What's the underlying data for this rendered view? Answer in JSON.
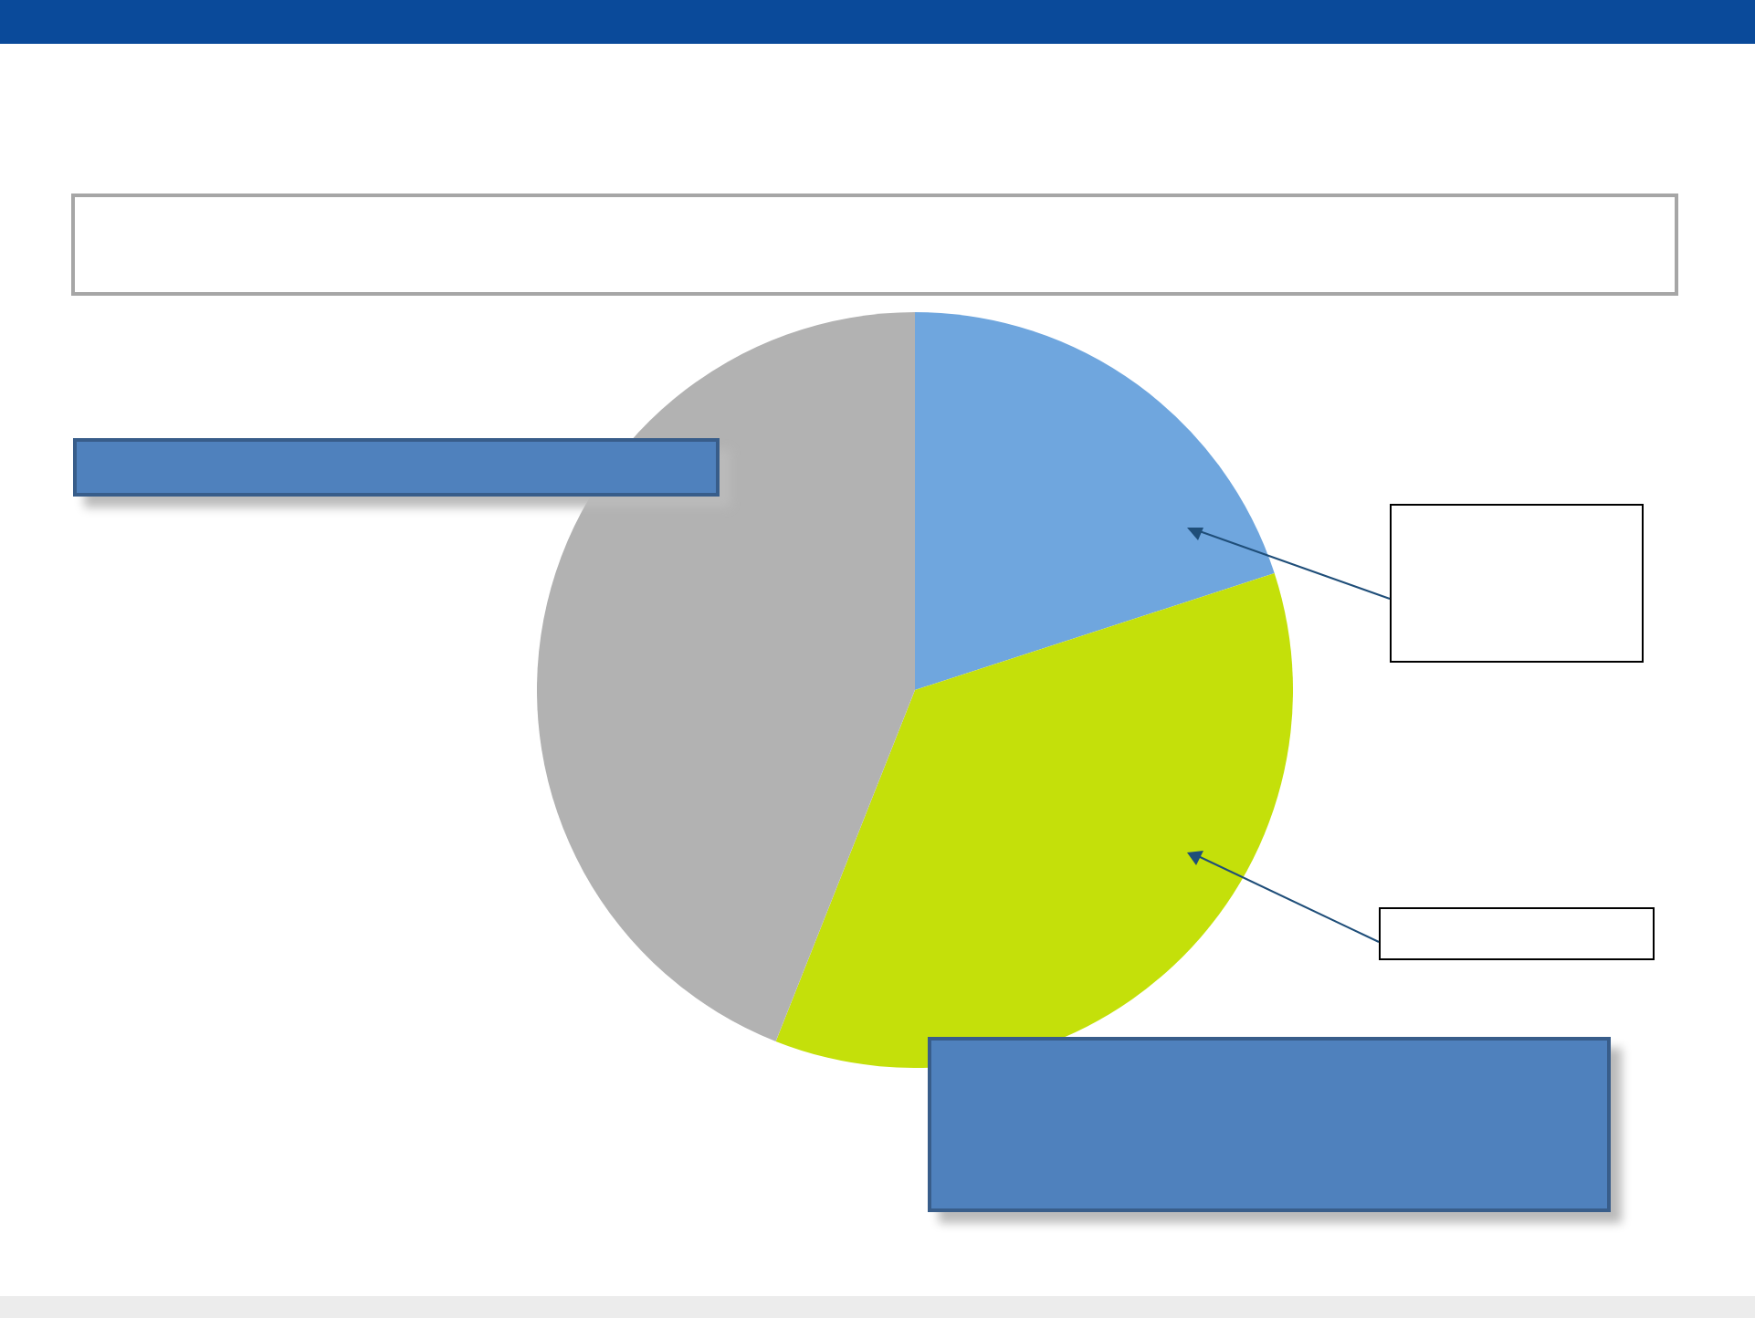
{
  "chart_data": {
    "type": "pie",
    "categories": [
      null,
      null,
      null
    ],
    "values": [
      20,
      36,
      44
    ],
    "colors": [
      "#6fa6de",
      "#c4e00a",
      "#b2b2b2"
    ]
  }
}
